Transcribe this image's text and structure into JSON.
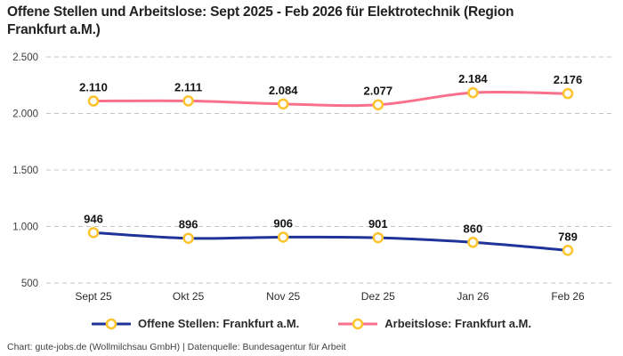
{
  "header": {
    "title": "Offene Stellen und Arbeitslose: Sept 2025 - Feb 2026 für Elektrotechnik (Region Frankfurt a.M.)"
  },
  "chart_data": {
    "type": "line",
    "categories": [
      "Sept 25",
      "Okt 25",
      "Nov 25",
      "Dez 25",
      "Jan 26",
      "Feb 26"
    ],
    "series": [
      {
        "name": "Offene Stellen: Frankfurt a.M.",
        "values": [
          946,
          896,
          906,
          901,
          860,
          789
        ],
        "labels": [
          "946",
          "896",
          "906",
          "901",
          "860",
          "789"
        ],
        "color": "#1f3499"
      },
      {
        "name": "Arbeitslose: Frankfurt a.M.",
        "values": [
          2110,
          2111,
          2084,
          2077,
          2184,
          2176
        ],
        "labels": [
          "2.110",
          "2.111",
          "2.084",
          "2.077",
          "2.184",
          "2.176"
        ],
        "color": "#f8718c"
      }
    ],
    "marker": {
      "fill": "#ffffff",
      "stroke": "#fdc32d"
    },
    "yticks": [
      500,
      1000,
      1500,
      2000,
      2500
    ],
    "ytick_labels": [
      "500",
      "1.000",
      "1.500",
      "2.000",
      "2.500"
    ],
    "ylim": [
      500,
      2500
    ],
    "xlabel": "",
    "ylabel": "",
    "grid": true,
    "grid_color": "#c4c4c4",
    "legend_position": "bottom"
  },
  "footer": {
    "credit": "Chart: gute-jobs.de (Wollmilchsau GmbH) | Datenquelle: Bundesagentur für Arbeit"
  }
}
